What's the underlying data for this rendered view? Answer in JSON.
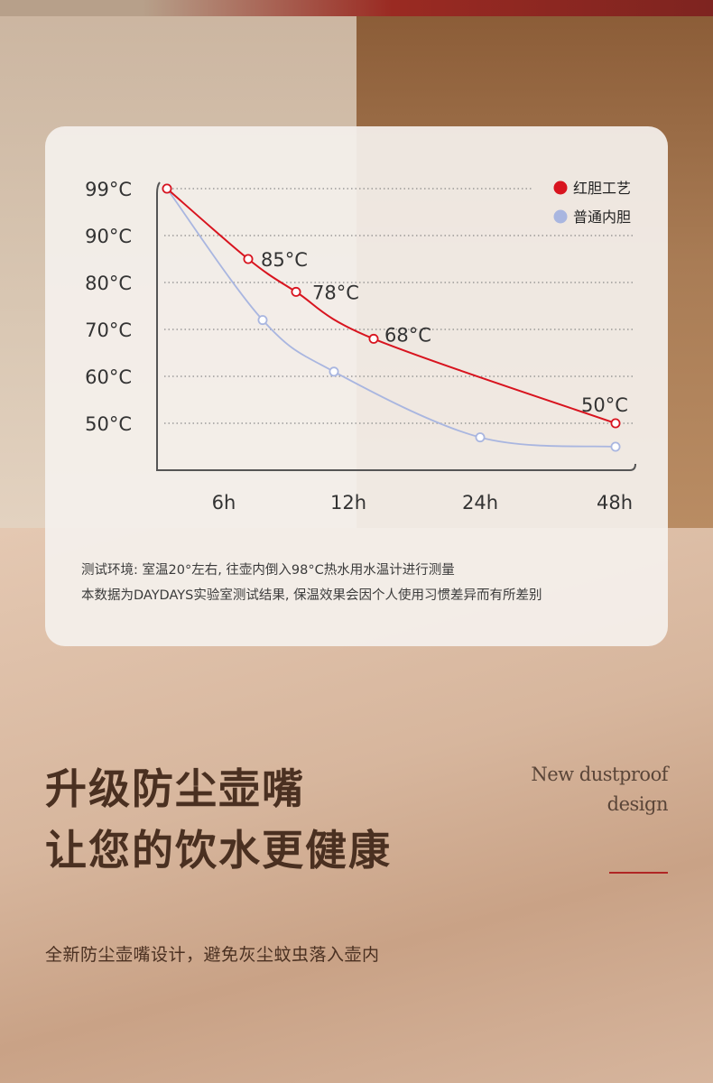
{
  "chart_data": {
    "type": "line",
    "x_categories": [
      "6h",
      "12h",
      "24h",
      "48h"
    ],
    "y_ticks": [
      "99°C",
      "90°C",
      "80°C",
      "70°C",
      "60°C",
      "50°C"
    ],
    "ylim": [
      50,
      99
    ],
    "series": [
      {
        "name": "红胆工艺",
        "color": "#d8141f",
        "points": [
          {
            "x": "0h",
            "y": 99
          },
          {
            "x": "6h",
            "y": 85,
            "label": "85°C"
          },
          {
            "x": "~9h",
            "y": 78,
            "label": "78°C"
          },
          {
            "x": "~18h",
            "y": 68,
            "label": "68°C"
          },
          {
            "x": "48h",
            "y": 50,
            "label": "50°C"
          }
        ]
      },
      {
        "name": "普通内胆",
        "color": "#a9b6e0",
        "points": [
          {
            "x": "0h",
            "y": 99
          },
          {
            "x": "~8h",
            "y": 72
          },
          {
            "x": "12h",
            "y": 61
          },
          {
            "x": "24h",
            "y": 47
          },
          {
            "x": "48h",
            "y": 45
          }
        ]
      }
    ],
    "grid": true,
    "legend": "top-right"
  },
  "notes": [
    "测试环境: 室温20°左右, 往壶内倒入98°C热水用水温计进行测量",
    "本数据为DAYDAYS实验室测试结果, 保温效果会因个人使用习惯差异而有所差别"
  ],
  "headline": [
    "升级防尘壶嘴",
    "让您的饮水更健康"
  ],
  "english": [
    "New dustproof",
    "design"
  ],
  "subline": "全新防尘壶嘴设计，避免灰尘蚊虫落入壶内"
}
